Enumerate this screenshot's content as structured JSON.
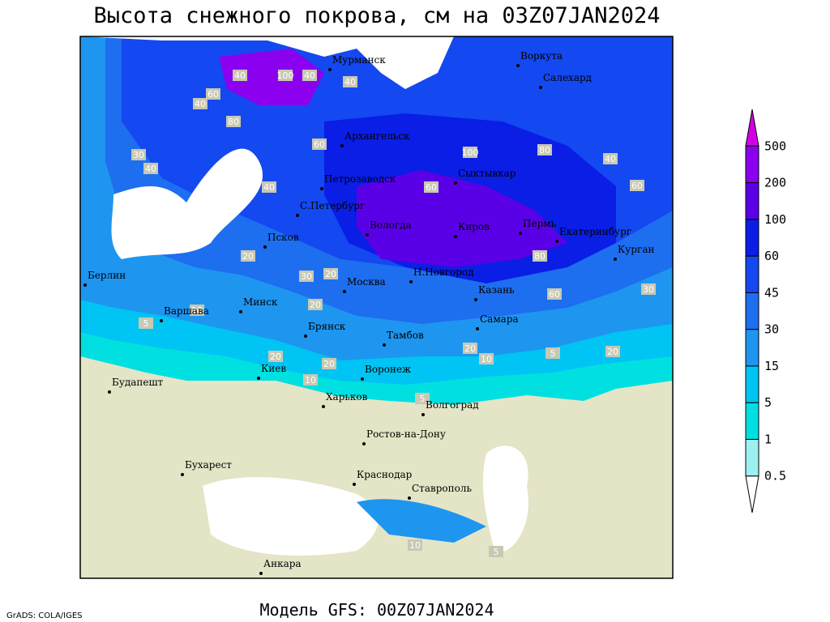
{
  "title": "Высота снежного покрова, см на 03Z07JAN2024",
  "model": "Модель GFS: 00Z07JAN2024",
  "credit": "GrADS: COLA/IGES",
  "colorbar": {
    "levels": [
      0.5,
      1,
      5,
      15,
      30,
      45,
      60,
      100,
      200,
      500
    ],
    "colors": [
      "#ffffff",
      "#9cf0f0",
      "#00e0e0",
      "#00c4f4",
      "#1e96f0",
      "#1e6ef0",
      "#1448f0",
      "#0a1ee6",
      "#5a00e6",
      "#8c00f0",
      "#d200e6"
    ]
  },
  "cities": [
    "Мурманск",
    "Воркута",
    "Салехард",
    "Архангельск",
    "Петрозаводск",
    "Сыктывкар",
    "С.Петербург",
    "Вологда",
    "Киров",
    "Пермь",
    "Екатеринбург",
    "Курган",
    "Псков",
    "Берлин",
    "Москва",
    "Н.Новгород",
    "Казань",
    "Минск",
    "Варшава",
    "Брянск",
    "Самара",
    "Тамбов",
    "Киев",
    "Воронеж",
    "Будапешт",
    "Харьков",
    "Волгоград",
    "Ростов-на-Дону",
    "Бухарест",
    "Краснодар",
    "Ставрополь",
    "Анкара"
  ],
  "contour_labels": [
    40,
    100,
    40,
    40,
    60,
    40,
    80,
    40,
    30,
    40,
    60,
    100,
    80,
    60,
    40,
    60,
    80,
    60,
    30,
    20,
    30,
    20,
    10,
    5,
    20,
    20,
    10,
    20,
    20,
    10,
    5,
    20,
    5,
    10,
    5
  ]
}
